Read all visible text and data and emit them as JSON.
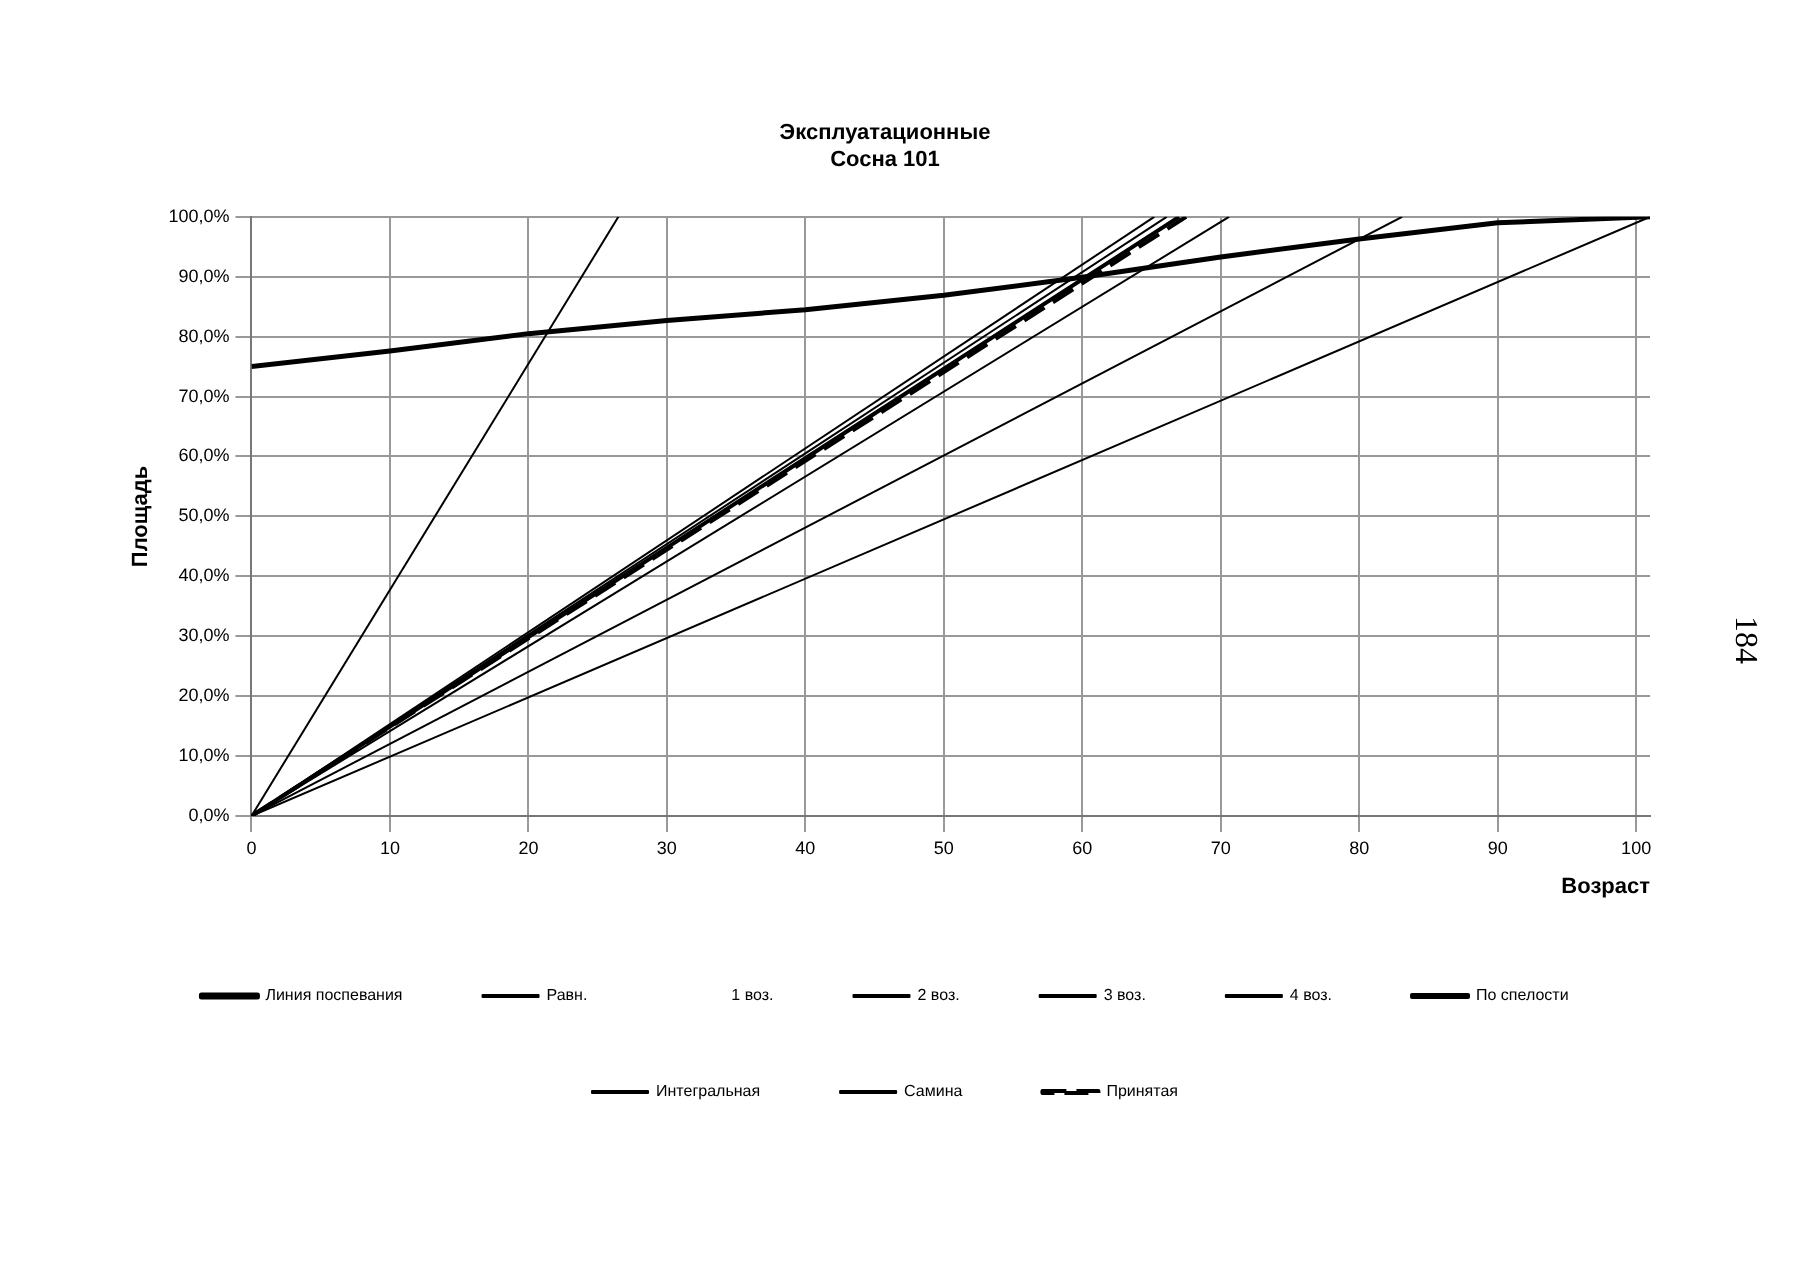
{
  "chart_data": {
    "type": "line",
    "title": [
      "Эксплуатационные",
      "Сосна 101"
    ],
    "xlabel": "Возраст",
    "ylabel": "Площадь",
    "xlim": [
      0,
      101
    ],
    "xticks": [
      0,
      10,
      20,
      30,
      40,
      50,
      60,
      70,
      80,
      90,
      100
    ],
    "ylim": [
      0,
      100
    ],
    "yticks": [
      {
        "value": 0,
        "label": "0,0%"
      },
      {
        "value": 10,
        "label": "10,0%"
      },
      {
        "value": 20,
        "label": "20,0%"
      },
      {
        "value": 30,
        "label": "30,0%"
      },
      {
        "value": 40,
        "label": "40,0%"
      },
      {
        "value": 50,
        "label": "50,0%"
      },
      {
        "value": 60,
        "label": "60,0%"
      },
      {
        "value": 70,
        "label": "70,0%"
      },
      {
        "value": 80,
        "label": "80,0%"
      },
      {
        "value": 90,
        "label": "90,0%"
      },
      {
        "value": 100,
        "label": "100,0%"
      }
    ],
    "grid": true,
    "legend": "bottom",
    "marker": "none",
    "annotations": [
      "184"
    ],
    "series": [
      {
        "name": "Линия поспевания",
        "color": "#000000",
        "x": [
          0,
          10,
          20,
          30,
          40,
          50,
          60,
          70,
          80,
          90,
          101
        ],
        "values": [
          75,
          77.6,
          80.5,
          82.7,
          84.5,
          86.9,
          89.9,
          93.3,
          96.3,
          99,
          100
        ]
      },
      {
        "name": "Равн.",
        "color": "#000000",
        "x": [
          0,
          26.5
        ],
        "values": [
          0,
          100
        ]
      },
      {
        "name": "1 воз."
      },
      {
        "name": "2 воз.",
        "color": "#000000",
        "x": [
          0,
          65.2
        ],
        "values": [
          0,
          100
        ]
      },
      {
        "name": "3 воз.",
        "color": "#000000",
        "x": [
          0,
          66.1
        ],
        "values": [
          0,
          100
        ]
      },
      {
        "name": "4 воз.",
        "color": "#000000",
        "x": [
          0,
          70.6
        ],
        "values": [
          0,
          100
        ]
      },
      {
        "name": "По спелости",
        "color": "#000000",
        "x": [
          0,
          67
        ],
        "values": [
          0,
          100
        ]
      },
      {
        "name": "Интегральная",
        "color": "#000000",
        "x": [
          0,
          83.1
        ],
        "values": [
          0,
          100
        ]
      },
      {
        "name": "Самина",
        "color": "#000000",
        "x": [
          0,
          101
        ],
        "values": [
          0,
          100
        ]
      },
      {
        "name": "Принятая",
        "color": "#000000",
        "line_style": "dashed",
        "x": [
          0,
          67.5
        ],
        "values": [
          0,
          100
        ]
      }
    ]
  }
}
